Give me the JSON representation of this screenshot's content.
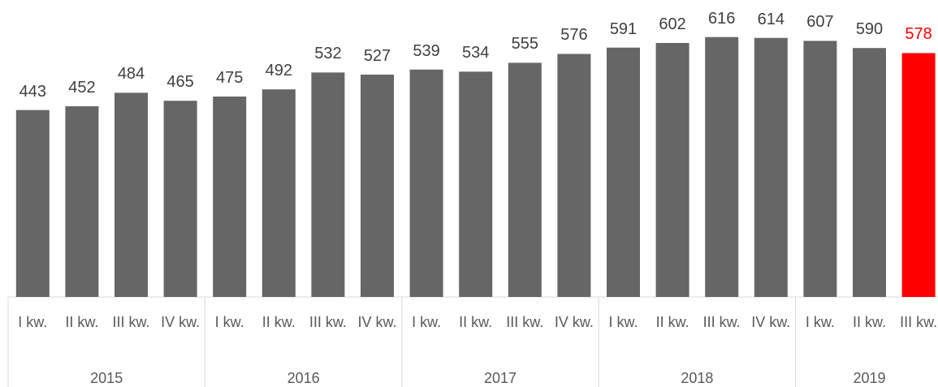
{
  "chart_data": {
    "type": "bar",
    "groups": [
      {
        "name": "2015",
        "categories": [
          "I kw.",
          "II kw.",
          "III kw.",
          "IV kw."
        ]
      },
      {
        "name": "2016",
        "categories": [
          "I kw.",
          "II kw.",
          "III kw.",
          "IV kw."
        ]
      },
      {
        "name": "2017",
        "categories": [
          "I kw.",
          "II kw.",
          "III kw.",
          "IV kw."
        ]
      },
      {
        "name": "2018",
        "categories": [
          "I kw.",
          "II kw.",
          "III kw.",
          "IV kw."
        ]
      },
      {
        "name": "2019",
        "categories": [
          "I kw.",
          "II kw.",
          "III kw."
        ]
      }
    ],
    "values": [
      443,
      452,
      484,
      465,
      475,
      492,
      532,
      527,
      539,
      534,
      555,
      576,
      591,
      602,
      616,
      614,
      607,
      590,
      578
    ],
    "colors": [
      "#666666",
      "#666666",
      "#666666",
      "#666666",
      "#666666",
      "#666666",
      "#666666",
      "#666666",
      "#666666",
      "#666666",
      "#666666",
      "#666666",
      "#666666",
      "#666666",
      "#666666",
      "#666666",
      "#666666",
      "#666666",
      "#ff0000"
    ]
  }
}
